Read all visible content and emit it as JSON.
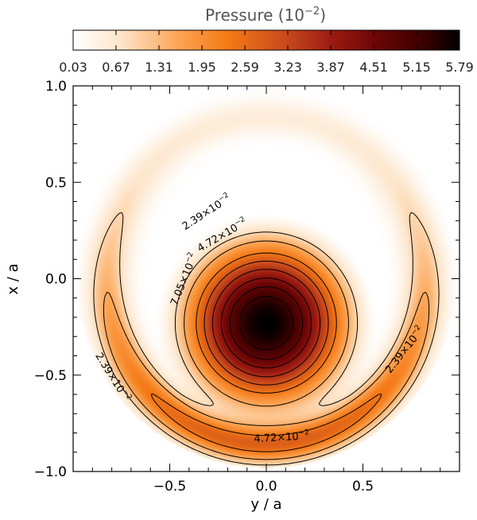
{
  "chart_data": {
    "type": "heatmap",
    "title": "Pressure (10",
    "title_exponent": "−2",
    "title_close": ")",
    "xlabel": "y / a",
    "ylabel": "x / a",
    "xlim": [
      -1.0,
      1.0
    ],
    "ylim": [
      -1.0,
      1.0
    ],
    "xticks": [
      -0.5,
      0.0,
      0.5
    ],
    "xtick_labels": [
      "−0.5",
      "0.0",
      "0.5"
    ],
    "yticks": [
      1.0,
      0.5,
      0.0,
      -0.5,
      -1.0
    ],
    "ytick_labels": [
      "1.0",
      "0.5",
      "0.0",
      "−0.5",
      "−1.0"
    ],
    "colorbar": {
      "ticks": [
        "0.03",
        "0.67",
        "1.31",
        "1.95",
        "2.59",
        "3.23",
        "3.87",
        "4.51",
        "5.15",
        "5.79"
      ],
      "min": 0.03,
      "max": 5.79,
      "colors": [
        "#ffffff",
        "#fde6cc",
        "#fca14f",
        "#f47a16",
        "#c94a1c",
        "#9a1b12",
        "#6d0606",
        "#3e0000",
        "#000000"
      ]
    },
    "field": {
      "outer_radius": 0.98,
      "core_center": [
        0.0,
        -0.23
      ],
      "core_radius": 0.58,
      "core_peak": 5.79,
      "ring_center": [
        0.0,
        -0.6
      ],
      "ring_peak": 2.3
    },
    "contour_levels": [
      2.39,
      4.72,
      7.05
    ],
    "contour_labels": [
      {
        "text": "2.39×10",
        "exp": "−2",
        "x": -0.3,
        "y": 0.33,
        "rotate": -33
      },
      {
        "text": "4.72×10",
        "exp": "−2",
        "x": -0.22,
        "y": 0.21,
        "rotate": -30
      },
      {
        "text": "7.05×10",
        "exp": "−2",
        "x": -0.41,
        "y": -0.01,
        "rotate": -68
      },
      {
        "text": "2.39×10",
        "exp": "−2",
        "x": 0.73,
        "y": -0.38,
        "rotate": -52
      },
      {
        "text": "2.39×10",
        "exp": "−2",
        "x": -0.81,
        "y": -0.52,
        "rotate": 58
      },
      {
        "text": "4.72×10",
        "exp": "−2",
        "x": 0.08,
        "y": -0.84,
        "rotate": -3
      }
    ]
  }
}
